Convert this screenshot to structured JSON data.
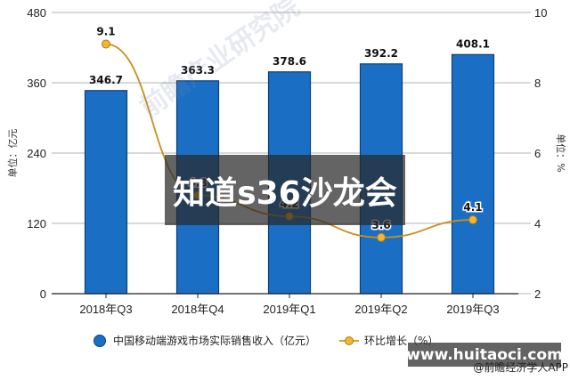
{
  "chart_data": {
    "type": "bar+line",
    "title": "",
    "categories": [
      "2018年Q3",
      "2018年Q4",
      "2019年Q1",
      "2019年Q2",
      "2019年Q3"
    ],
    "series": [
      {
        "name": "中国移动端游戏市场实际销售收入（亿元）",
        "type": "bar",
        "axis": "left",
        "color": "#1a6fc4",
        "values": [
          346.7,
          363.3,
          378.6,
          392.2,
          408.1
        ],
        "labels": [
          "346.7",
          "363.3",
          "378.6",
          "392.2",
          "408.1"
        ]
      },
      {
        "name": "环比增长（%）",
        "type": "line",
        "axis": "right",
        "color": "#e0a020",
        "values": [
          9.1,
          4.8,
          4.2,
          3.6,
          4.1
        ],
        "labels": [
          "9.1",
          "4.8",
          "4.2",
          "3.6",
          "4.1"
        ]
      }
    ],
    "ylabel": "单位：亿元",
    "ylabel_right": "单位：%",
    "ylim": [
      0,
      480
    ],
    "ylim_right": [
      2,
      10
    ],
    "yticks": [
      "0",
      "120",
      "240",
      "360",
      "480"
    ],
    "yticks_right": [
      "2",
      "4",
      "6",
      "8",
      "10"
    ],
    "grid": true,
    "legend_position": "bottom"
  },
  "legend": {
    "bar_label": "中国移动端游戏市场实际销售收入（亿元）",
    "line_label": "环比增长（%）"
  },
  "overlay": {
    "text": "知道s36沙龙会"
  },
  "banner": {
    "url_text": "www.huitaoci.com",
    "source_text": "@前瞻经济学人APP"
  },
  "watermark": {
    "text": "前瞻产业研究院"
  }
}
